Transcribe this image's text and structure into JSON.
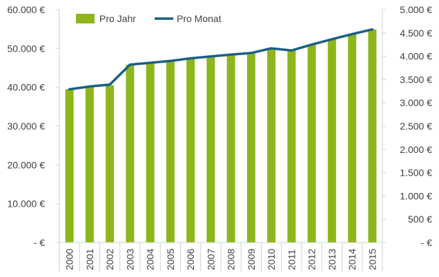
{
  "chart_data": {
    "type": "bar",
    "categories": [
      "2000",
      "2001",
      "2002",
      "2003",
      "2004",
      "2005",
      "2006",
      "2007",
      "2008",
      "2009",
      "2010",
      "2011",
      "2012",
      "2013",
      "2014",
      "2015"
    ],
    "series": [
      {
        "name": "Pro Jahr",
        "type": "bar",
        "axis": "left",
        "color": "#8db61c",
        "values": [
          39500,
          40300,
          40500,
          45800,
          46500,
          46900,
          47500,
          47900,
          48300,
          48700,
          50000,
          49500,
          51000,
          52400,
          53700,
          54900
        ]
      },
      {
        "name": "Pro Monat",
        "type": "line",
        "axis": "right",
        "color": "#1a5f84",
        "values": [
          3290,
          3350,
          3390,
          3820,
          3860,
          3900,
          3955,
          3995,
          4035,
          4070,
          4170,
          4125,
          4250,
          4365,
          4475,
          4575
        ]
      }
    ],
    "y_left": {
      "range": [
        0,
        60000
      ],
      "ticks": [
        {
          "value": 60000,
          "label": "60.000 €"
        },
        {
          "value": 50000,
          "label": "50.000 €"
        },
        {
          "value": 40000,
          "label": "40.000 €"
        },
        {
          "value": 30000,
          "label": "30.000 €"
        },
        {
          "value": 20000,
          "label": "20.000 €"
        },
        {
          "value": 10000,
          "label": "10.000 €"
        },
        {
          "value": 0,
          "label": "-   €"
        }
      ]
    },
    "y_right": {
      "range": [
        0,
        5000
      ],
      "ticks": [
        {
          "value": 5000,
          "label": "5.000 €"
        },
        {
          "value": 4500,
          "label": "4.500 €"
        },
        {
          "value": 4000,
          "label": "4.000 €"
        },
        {
          "value": 3500,
          "label": "3.500 €"
        },
        {
          "value": 3000,
          "label": "3.000 €"
        },
        {
          "value": 2500,
          "label": "2.500 €"
        },
        {
          "value": 2000,
          "label": "2.000 €"
        },
        {
          "value": 1500,
          "label": "1.500 €"
        },
        {
          "value": 1000,
          "label": "1.000 €"
        },
        {
          "value": 500,
          "label": "500 €"
        },
        {
          "value": 0,
          "label": "-   €"
        }
      ]
    },
    "grid": false,
    "legend": {
      "position": "top-left",
      "entries": [
        "Pro Jahr",
        "Pro Monat"
      ]
    }
  }
}
